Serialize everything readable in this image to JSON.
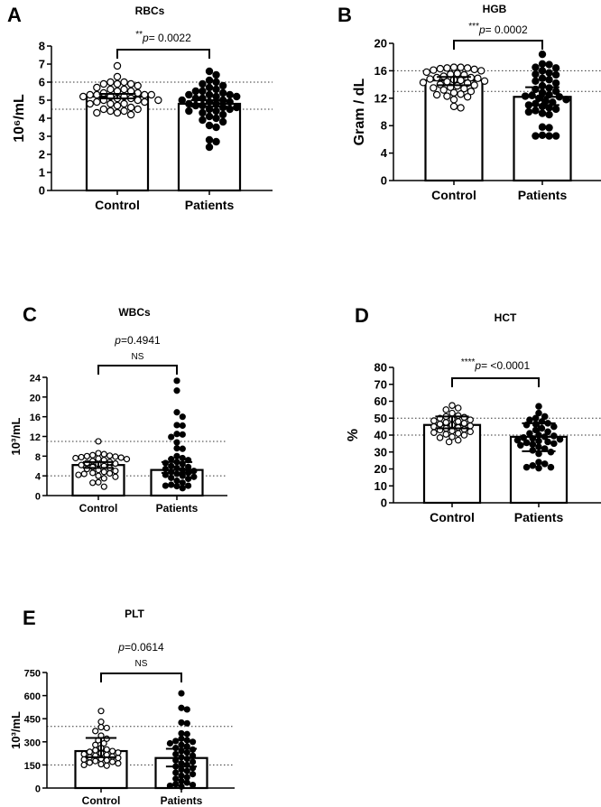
{
  "chart_data": [
    {
      "type": "bar+scatter",
      "panel": "A",
      "title": "RBCs",
      "ylabel": "10⁶/mL",
      "ylim": [
        0,
        8
      ],
      "yticks": [
        "0",
        "1",
        "2",
        "3",
        "4",
        "5",
        "6",
        "7",
        "8"
      ],
      "categories": [
        "Control",
        "Patients"
      ],
      "reference_lines": [
        4.5,
        6.0
      ],
      "significance": {
        "stars": "**",
        "p_label": "p",
        "p_value": "= 0.0022",
        "ns": ""
      },
      "groups": [
        {
          "name": "Control",
          "fill": "open",
          "mean": 5.2,
          "err_low": 5.1,
          "err_high": 5.35,
          "points": [
            6.9,
            6.3,
            6.0,
            6.0,
            5.9,
            5.9,
            5.9,
            5.8,
            5.7,
            5.6,
            5.6,
            5.5,
            5.5,
            5.4,
            5.4,
            5.3,
            5.3,
            5.3,
            5.3,
            5.2,
            5.2,
            5.2,
            5.1,
            5.1,
            5.0,
            5.0,
            5.0,
            4.9,
            4.9,
            4.8,
            4.8,
            4.8,
            4.7,
            4.6,
            4.5,
            4.5,
            4.4,
            4.4,
            4.3,
            4.3,
            4.2
          ]
        },
        {
          "name": "Patients",
          "fill": "solid",
          "mean": 4.8,
          "err_low": 4.65,
          "err_high": 5.0,
          "points": [
            6.6,
            6.4,
            6.1,
            6.0,
            5.9,
            5.8,
            5.7,
            5.6,
            5.5,
            5.5,
            5.4,
            5.3,
            5.3,
            5.3,
            5.2,
            5.2,
            5.1,
            5.1,
            5.0,
            5.0,
            4.9,
            4.9,
            4.8,
            4.8,
            4.7,
            4.7,
            4.6,
            4.6,
            4.5,
            4.5,
            4.4,
            4.4,
            4.3,
            4.2,
            4.1,
            4.0,
            3.9,
            3.8,
            3.6,
            3.5,
            2.8,
            2.7,
            2.4
          ]
        }
      ]
    },
    {
      "type": "bar+scatter",
      "panel": "B",
      "title": "HGB",
      "ylabel": "Gram / dL",
      "ylim": [
        0,
        20
      ],
      "yticks": [
        "0",
        "4",
        "8",
        "12",
        "16",
        "20"
      ],
      "categories": [
        "Control",
        "Patients"
      ],
      "reference_lines": [
        13,
        16
      ],
      "significance": {
        "stars": "***",
        "p_label": "p",
        "p_value": "= 0.0002",
        "ns": ""
      },
      "groups": [
        {
          "name": "Control",
          "fill": "open",
          "mean": 14.6,
          "err_low": 13.9,
          "err_high": 15.1,
          "points": [
            16.5,
            16.5,
            16.4,
            16.4,
            16.3,
            16.2,
            16.1,
            16.0,
            15.8,
            15.6,
            15.5,
            15.4,
            15.2,
            15.0,
            15.0,
            14.9,
            14.8,
            14.7,
            14.6,
            14.5,
            14.4,
            14.3,
            14.2,
            14.0,
            13.9,
            13.8,
            13.6,
            13.5,
            13.4,
            13.2,
            13.0,
            12.8,
            12.6,
            12.5,
            12.3,
            12.2,
            11.8,
            10.8,
            10.6
          ]
        },
        {
          "name": "Patients",
          "fill": "solid",
          "mean": 12.2,
          "err_low": 11.0,
          "err_high": 13.6,
          "points": [
            18.4,
            17.0,
            16.9,
            16.5,
            16.4,
            16.0,
            15.7,
            15.5,
            15.4,
            14.9,
            14.7,
            14.5,
            14.2,
            13.8,
            13.5,
            13.3,
            13.0,
            12.8,
            12.5,
            12.4,
            12.3,
            12.2,
            12.0,
            11.8,
            11.6,
            11.4,
            11.2,
            11.0,
            10.8,
            10.6,
            10.4,
            10.2,
            10.0,
            9.8,
            9.6,
            7.8,
            7.7,
            6.6,
            6.5,
            6.5,
            6.5
          ]
        }
      ]
    },
    {
      "type": "bar+scatter",
      "panel": "C",
      "title": "WBCs",
      "ylabel": "10³/mL",
      "ylim": [
        0,
        24
      ],
      "yticks": [
        "0",
        "4",
        "8",
        "12",
        "16",
        "20",
        "24"
      ],
      "categories": [
        "Control",
        "Patients"
      ],
      "reference_lines": [
        4,
        11
      ],
      "significance": {
        "stars": "",
        "p_label": "p",
        "p_value": "=0.4941",
        "ns": "NS"
      },
      "groups": [
        {
          "name": "Control",
          "fill": "open",
          "mean": 6.2,
          "err_low": 5.6,
          "err_high": 6.8,
          "points": [
            11.0,
            8.6,
            8.4,
            8.2,
            8.1,
            8.0,
            7.9,
            7.8,
            7.7,
            7.6,
            7.5,
            7.4,
            7.2,
            7.0,
            6.8,
            6.6,
            6.5,
            6.4,
            6.2,
            6.0,
            5.8,
            5.6,
            5.4,
            5.2,
            5.0,
            4.8,
            4.6,
            4.5,
            4.4,
            4.2,
            4.0,
            3.8,
            3.5,
            2.7,
            2.6,
            1.8
          ]
        },
        {
          "name": "Patients",
          "fill": "solid",
          "mean": 5.2,
          "err_low": 4.6,
          "err_high": 6.8,
          "points": [
            23.3,
            21.3,
            16.9,
            16.0,
            14.3,
            14.2,
            12.5,
            12.4,
            11.9,
            10.8,
            9.6,
            9.5,
            8.0,
            7.6,
            7.4,
            7.2,
            6.8,
            6.6,
            6.4,
            6.0,
            5.8,
            5.6,
            5.4,
            5.2,
            5.0,
            4.8,
            4.6,
            4.4,
            4.2,
            4.0,
            3.8,
            3.6,
            3.4,
            3.0,
            2.6,
            2.2,
            2.0,
            2.0,
            1.9,
            1.5
          ]
        }
      ]
    },
    {
      "type": "bar+scatter",
      "panel": "D",
      "title": "HCT",
      "ylabel": "%",
      "ylim": [
        0,
        80
      ],
      "yticks": [
        "0",
        "10",
        "20",
        "30",
        "40",
        "50",
        "60",
        "70",
        "80"
      ],
      "categories": [
        "Control",
        "Patients"
      ],
      "reference_lines": [
        40,
        50
      ],
      "significance": {
        "stars": "****",
        "p_label": "p",
        "p_value": "= <0.0001",
        "ns": ""
      },
      "groups": [
        {
          "name": "Control",
          "fill": "open",
          "mean": 46,
          "err_low": 44,
          "err_high": 51,
          "points": [
            57.5,
            56,
            55,
            53,
            51.5,
            51,
            50.5,
            50,
            49.5,
            49,
            48.5,
            48,
            47.5,
            47,
            46.5,
            46,
            45.5,
            45,
            44.5,
            44,
            43.5,
            43,
            42.5,
            42,
            41.5,
            41,
            40.5,
            40,
            39,
            38.5,
            37,
            36
          ]
        },
        {
          "name": "Patients",
          "fill": "solid",
          "mean": 39,
          "err_low": 30.5,
          "err_high": 47,
          "points": [
            57,
            53,
            51,
            50,
            49,
            48,
            47,
            46.5,
            46,
            45,
            44,
            43,
            42,
            41,
            40,
            39.5,
            39,
            38.5,
            38,
            37.5,
            37,
            36.5,
            36,
            35.5,
            35,
            34.5,
            34,
            33,
            32,
            31,
            30,
            29,
            24,
            23,
            22,
            21,
            21,
            20.5
          ]
        }
      ]
    },
    {
      "type": "bar+scatter",
      "panel": "E",
      "title": "PLT",
      "ylabel": "10³/mL",
      "ylim": [
        0,
        750
      ],
      "yticks": [
        "0",
        "150",
        "300",
        "450",
        "600",
        "750"
      ],
      "categories": [
        "Control",
        "Patients"
      ],
      "reference_lines": [
        150,
        400
      ],
      "significance": {
        "stars": "",
        "p_label": "p",
        "p_value": "=0.0614",
        "ns": "NS"
      },
      "groups": [
        {
          "name": "Control",
          "fill": "open",
          "mean": 240,
          "err_low": 200,
          "err_high": 325,
          "points": [
            500,
            430,
            395,
            390,
            370,
            340,
            320,
            310,
            290,
            280,
            260,
            250,
            245,
            240,
            235,
            230,
            225,
            220,
            215,
            210,
            205,
            200,
            195,
            190,
            185,
            180,
            175,
            170,
            165,
            160,
            155,
            150,
            145
          ]
        },
        {
          "name": "Patients",
          "fill": "solid",
          "mean": 195,
          "err_low": 140,
          "err_high": 255,
          "points": [
            615,
            520,
            510,
            425,
            420,
            355,
            350,
            320,
            310,
            305,
            300,
            290,
            280,
            270,
            260,
            250,
            240,
            230,
            220,
            210,
            200,
            190,
            180,
            170,
            160,
            150,
            140,
            130,
            120,
            110,
            100,
            90,
            80,
            70,
            60,
            45,
            35,
            25,
            20,
            15,
            10
          ]
        }
      ]
    }
  ]
}
